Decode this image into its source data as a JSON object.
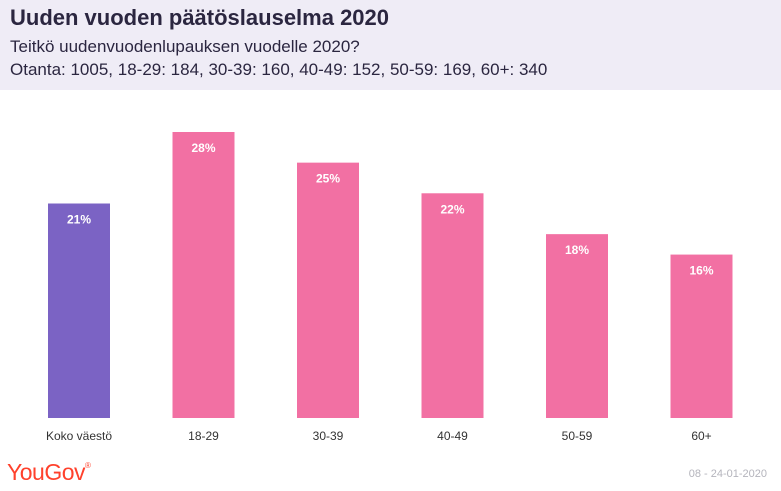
{
  "header": {
    "title": "Uuden vuoden päätöslauselma 2020",
    "subtitle": "Teitkö uudenvuodenlupauksen vuodelle 2020?",
    "sample": "Otanta: 1005, 18-29: 184, 30-39: 160, 40-49: 152, 50-59: 169, 60+: 340"
  },
  "footer": {
    "logo": "YouGov",
    "date": "08 - 24-01-2020"
  },
  "colors": {
    "total": "#7b63c4",
    "group": "#f270a3",
    "label": "#ffffff",
    "axis_text": "#333333"
  },
  "chart_data": {
    "type": "bar",
    "title": "Uuden vuoden päätöslauselma 2020",
    "categories": [
      "Koko väestö",
      "18-29",
      "30-39",
      "40-49",
      "50-59",
      "60+"
    ],
    "values": [
      21,
      28,
      25,
      22,
      18,
      16
    ],
    "data_labels": [
      "21%",
      "28%",
      "25%",
      "22%",
      "18%",
      "16%"
    ],
    "unit": "%",
    "ylim": [
      0,
      28
    ],
    "grid": false,
    "legend": "none"
  }
}
